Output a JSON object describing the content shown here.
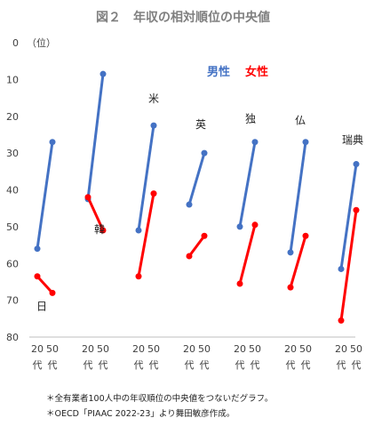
{
  "chart_data": {
    "type": "line",
    "title": "図２　年収の相対順位の中央値",
    "ylabel": "（位）",
    "ylim": [
      80,
      0
    ],
    "y_inverted": true,
    "yticks": [
      0,
      10,
      20,
      30,
      40,
      50,
      60,
      70,
      80
    ],
    "x_tick_top": "20 50",
    "x_tick_bottom": "代 代",
    "colors": {
      "male": "#4472c4",
      "female": "#ff0000"
    },
    "legend": {
      "male": "男性",
      "female": "女性",
      "position": "top-right"
    },
    "groups": [
      {
        "country": "日",
        "male": [
          56,
          27
        ],
        "female": [
          63.5,
          68
        ]
      },
      {
        "country": "韓",
        "male": [
          42.5,
          8.5
        ],
        "female": [
          42,
          51
        ]
      },
      {
        "country": "米",
        "male": [
          51,
          22.5
        ],
        "female": [
          63.5,
          41
        ]
      },
      {
        "country": "英",
        "male": [
          44,
          30
        ],
        "female": [
          58,
          52.5
        ]
      },
      {
        "country": "独",
        "male": [
          50,
          27
        ],
        "female": [
          65.5,
          49.5
        ]
      },
      {
        "country": "仏",
        "male": [
          57,
          27
        ],
        "female": [
          66.5,
          52.5
        ]
      },
      {
        "country": "瑞典",
        "male": [
          61.5,
          33
        ],
        "female": [
          75.5,
          45.5
        ]
      }
    ]
  },
  "notes": [
    "＊全有業者100人中の年収順位の中央値をつないだグラフ。",
    "＊OECD「PIAAC 2022-23」より舞田敏彦作成。"
  ]
}
